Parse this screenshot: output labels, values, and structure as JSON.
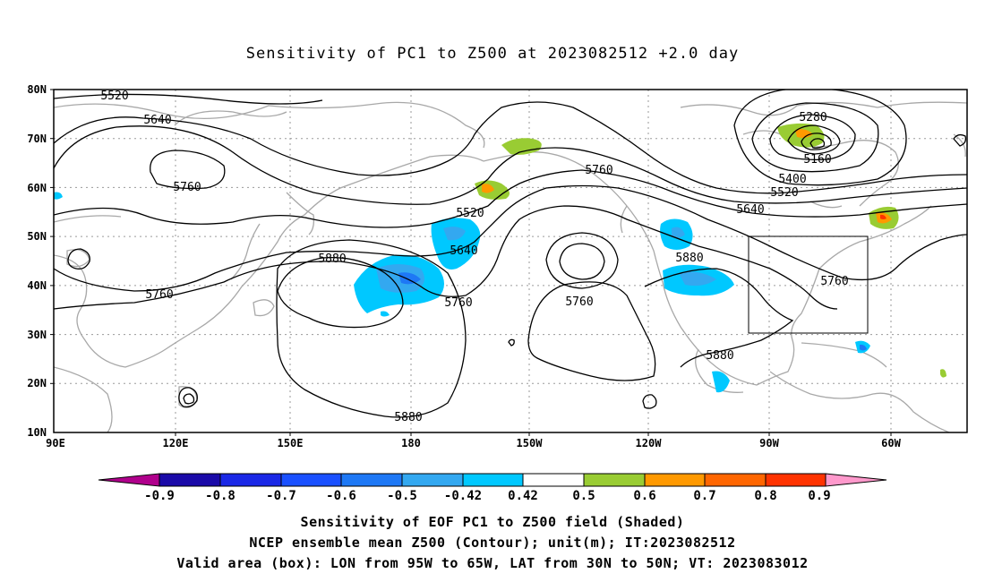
{
  "title": "Sensitivity of PC1 to Z500 at 2023082512 +2.0 day",
  "map": {
    "lat_labels": [
      "80N",
      "70N",
      "60N",
      "50N",
      "40N",
      "30N",
      "20N",
      "10N"
    ],
    "lon_labels": [
      "90E",
      "120E",
      "150E",
      "180",
      "150W",
      "120W",
      "90W",
      "60W"
    ],
    "contour_labels": [
      "5520",
      "5640",
      "5760",
      "5760",
      "5880",
      "5760",
      "5880",
      "5520",
      "5640",
      "5760",
      "5760",
      "5880",
      "5880",
      "5280",
      "5160",
      "5400",
      "5520",
      "5640",
      "5760"
    ],
    "valid_box": {
      "lon": [
        "95W",
        "65W"
      ],
      "lat": [
        "30N",
        "50N"
      ]
    }
  },
  "colorbar": {
    "ticks": [
      "-0.9",
      "-0.8",
      "-0.7",
      "-0.6",
      "-0.5",
      "-0.42",
      "0.42",
      "0.5",
      "0.6",
      "0.7",
      "0.8",
      "0.9"
    ],
    "colors": [
      "#b0008c",
      "#1a0aa8",
      "#1a28e6",
      "#1a50ff",
      "#1e78f5",
      "#33a8f0",
      "#00c8ff",
      "#ffffff",
      "#99cc33",
      "#ff9900",
      "#ff6600",
      "#ff3300",
      "#ff0000",
      "#ff99cc"
    ]
  },
  "captions": {
    "line1": "Sensitivity of EOF PC1 to Z500 field (Shaded)",
    "line2": "NCEP ensemble mean Z500 (Contour); unit(m); IT:2023082512",
    "line3": "Valid area (box): LON from 95W to 65W, LAT from 30N to 50N; VT: 2023083012"
  }
}
